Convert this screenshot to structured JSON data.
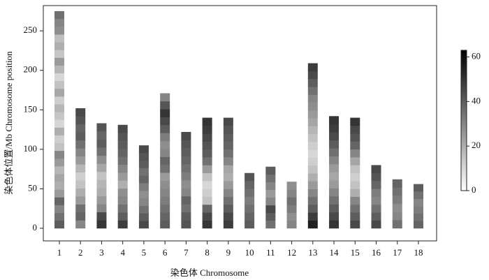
{
  "chart_data": {
    "type": "chromosome-density",
    "xlabel": "染色体 Chromosome",
    "ylabel": "染色体位置/Mb Chromosome position",
    "xlim": [
      0.24,
      18.86
    ],
    "ylim": [
      -16,
      282
    ],
    "yticks": [
      0,
      50,
      100,
      150,
      200,
      250
    ],
    "clim": [
      0,
      63
    ],
    "cticks": [
      0,
      20,
      40,
      60
    ],
    "colormap": [
      "#ffffff",
      "#000000"
    ],
    "series": [
      {
        "name": "1",
        "x": 1,
        "length": 275,
        "density": [
          40,
          35,
          30,
          38,
          25,
          20,
          22,
          18,
          25,
          30,
          15,
          12,
          20,
          10,
          14,
          18,
          12,
          22,
          15,
          10,
          18,
          25,
          14,
          20,
          16,
          28,
          30,
          35
        ]
      },
      {
        "name": "2",
        "x": 2,
        "length": 152,
        "density": [
          30,
          38,
          35,
          25,
          20,
          15,
          12,
          18,
          25,
          30,
          35,
          40,
          38,
          42,
          45
        ]
      },
      {
        "name": "3",
        "x": 3,
        "length": 133,
        "density": [
          50,
          45,
          30,
          25,
          20,
          18,
          15,
          22,
          28,
          35,
          40,
          38,
          42
        ]
      },
      {
        "name": "4",
        "x": 4,
        "length": 131,
        "density": [
          48,
          40,
          35,
          30,
          28,
          20,
          25,
          30,
          35,
          38,
          40,
          42,
          45
        ]
      },
      {
        "name": "5",
        "x": 5,
        "length": 105,
        "density": [
          45,
          40,
          35,
          30,
          28,
          32,
          38,
          35,
          40,
          42,
          45
        ]
      },
      {
        "name": "6",
        "x": 6,
        "length": 171,
        "density": [
          40,
          38,
          35,
          32,
          30,
          28,
          25,
          35,
          38,
          30,
          28,
          32,
          40,
          45,
          50,
          42,
          30
        ]
      },
      {
        "name": "7",
        "x": 7,
        "length": 122,
        "density": [
          42,
          40,
          35,
          38,
          30,
          28,
          32,
          35,
          38,
          40,
          42,
          45
        ]
      },
      {
        "name": "8",
        "x": 8,
        "length": 140,
        "density": [
          50,
          45,
          38,
          15,
          12,
          10,
          15,
          25,
          35,
          40,
          42,
          45,
          48,
          50
        ]
      },
      {
        "name": "9",
        "x": 9,
        "length": 140,
        "density": [
          48,
          45,
          40,
          35,
          30,
          25,
          20,
          22,
          30,
          35,
          38,
          40,
          42,
          45
        ]
      },
      {
        "name": "10",
        "x": 10,
        "length": 70,
        "density": [
          40,
          38,
          35,
          32,
          35,
          38,
          42
        ]
      },
      {
        "name": "11",
        "x": 11,
        "length": 78,
        "density": [
          35,
          40,
          45,
          30,
          25,
          30,
          35,
          40
        ]
      },
      {
        "name": "12",
        "x": 12,
        "length": 59,
        "density": [
          30,
          28,
          32,
          35,
          30,
          28
        ]
      },
      {
        "name": "13",
        "x": 13,
        "length": 209,
        "density": [
          55,
          48,
          40,
          35,
          30,
          25,
          20,
          15,
          12,
          10,
          12,
          15,
          18,
          22,
          25,
          28,
          30,
          35,
          40,
          45,
          48
        ]
      },
      {
        "name": "14",
        "x": 14,
        "length": 142,
        "density": [
          50,
          45,
          40,
          35,
          30,
          25,
          22,
          25,
          30,
          35,
          40,
          45,
          48,
          50
        ]
      },
      {
        "name": "15",
        "x": 15,
        "length": 140,
        "density": [
          45,
          40,
          35,
          30,
          20,
          15,
          12,
          15,
          22,
          30,
          38,
          42,
          45,
          50
        ]
      },
      {
        "name": "16",
        "x": 16,
        "length": 80,
        "density": [
          45,
          40,
          35,
          30,
          32,
          38,
          42,
          45
        ]
      },
      {
        "name": "17",
        "x": 17,
        "length": 62,
        "density": [
          35,
          30,
          28,
          32,
          35,
          38
        ]
      },
      {
        "name": "18",
        "x": 18,
        "length": 56,
        "density": [
          38,
          35,
          32,
          30,
          35,
          40
        ]
      }
    ]
  }
}
